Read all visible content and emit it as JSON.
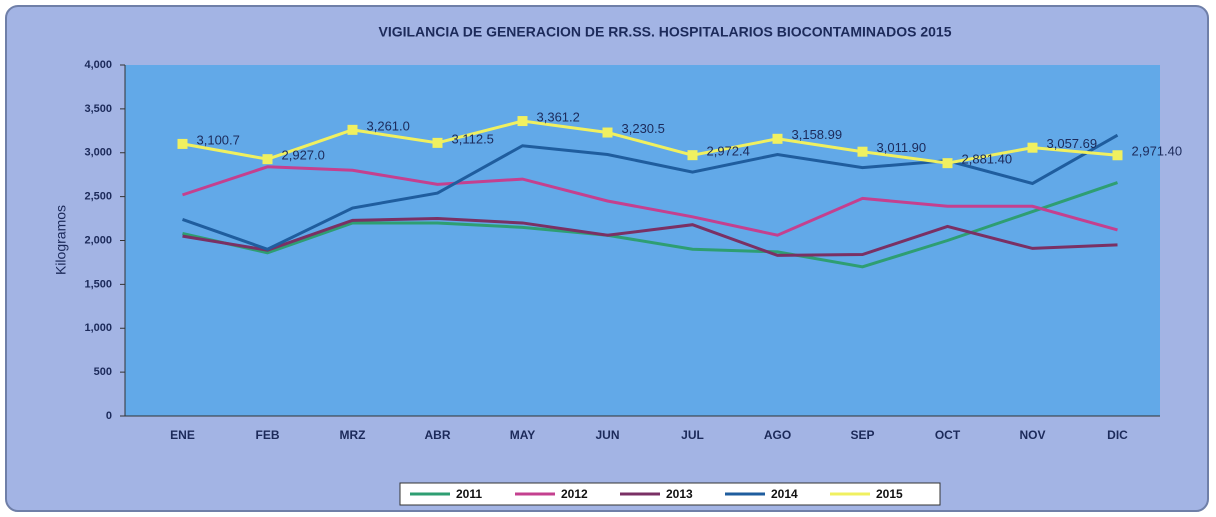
{
  "chart_data": {
    "type": "line",
    "title": "VIGILANCIA  DE GENERACION DE RR.SS. HOSPITALARIOS BIOCONTAMINADOS  2015",
    "y_label": "Kilogramos",
    "categories": [
      "ENE",
      "FEB",
      "MRZ",
      "ABR",
      "MAY",
      "JUN",
      "JUL",
      "AGO",
      "SEP",
      "OCT",
      "NOV",
      "DIC"
    ],
    "series": [
      {
        "name": "2011",
        "color": "#2e9e72",
        "values": [
          2080,
          1860,
          2200,
          2200,
          2150,
          2060,
          1900,
          1870,
          1700,
          2000,
          2330,
          2660
        ]
      },
      {
        "name": "2012",
        "color": "#c4408f",
        "values": [
          2520,
          2840,
          2800,
          2640,
          2700,
          2450,
          2270,
          2060,
          2480,
          2390,
          2390,
          2120
        ]
      },
      {
        "name": "2013",
        "color": "#7a3064",
        "values": [
          2050,
          1890,
          2230,
          2250,
          2200,
          2060,
          2180,
          1830,
          1840,
          2160,
          1910,
          1950
        ]
      },
      {
        "name": "2014",
        "color": "#1f5d9e",
        "values": [
          2240,
          1900,
          2370,
          2540,
          3080,
          2980,
          2780,
          2980,
          2830,
          2910,
          2650,
          3200
        ]
      },
      {
        "name": "2015",
        "color": "#f0f060",
        "markers": true,
        "values": [
          3100.7,
          2927.0,
          3261.0,
          3112.5,
          3361.2,
          3230.5,
          2972.4,
          3158.99,
          3011.9,
          2881.4,
          3057.69,
          2971.4
        ],
        "value_labels": [
          "3,100.7",
          "2,927.0",
          "3,261.0",
          "3,112.5",
          "3,361.2",
          "3,230.5",
          "2,972.4",
          "3,158.99",
          "3,011.90",
          "2,881.40",
          "3,057.69",
          "2,971.40"
        ]
      }
    ],
    "ylim": [
      0,
      4000
    ],
    "yticks": [
      0,
      500,
      {
        "value": 1000,
        "label": "1,000"
      },
      {
        "value": 1500,
        "label": "1,500"
      },
      {
        "value": 2000,
        "label": "2,000"
      },
      {
        "value": 2500,
        "label": "2,500"
      },
      {
        "value": 3000,
        "label": "3,000"
      },
      {
        "value": 3500,
        "label": "3,500"
      },
      {
        "value": 4000,
        "label": "4,000"
      }
    ],
    "legend": "bottom"
  }
}
